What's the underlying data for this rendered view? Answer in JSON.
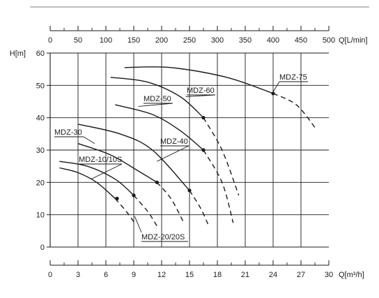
{
  "chart_data": {
    "type": "line",
    "title": "",
    "ylabel": "H[m]",
    "xlabel_top": "Q[L/min]",
    "xlabel_bottom": "Q[m³/h]",
    "x_top_ticks": [
      "0",
      "50",
      "100",
      "150",
      "200",
      "250",
      "300",
      "350",
      "400",
      "450",
      "500"
    ],
    "x_bottom_ticks": [
      "0",
      "3",
      "6",
      "9",
      "12",
      "15",
      "18",
      "21",
      "24",
      "27",
      "30"
    ],
    "y_ticks": [
      "0",
      "10",
      "20",
      "30",
      "40",
      "50",
      "60"
    ],
    "xlim": [
      0,
      30
    ],
    "ylim": [
      0,
      60
    ],
    "grid": true,
    "series": [
      {
        "name": "MDZ-10/10S",
        "solid": [
          [
            1,
            24.5
          ],
          [
            3,
            23.0
          ],
          [
            5,
            20.0
          ],
          [
            7,
            15.0
          ]
        ],
        "dashed": [
          [
            7,
            15.0
          ],
          [
            8.2,
            11.0
          ],
          [
            9.2,
            7.0
          ]
        ],
        "duty_point": [
          7.2,
          15.0
        ],
        "label_target": [
          4.4,
          21.0
        ]
      },
      {
        "name": "MDZ-20/20S",
        "solid": [
          [
            1,
            26.5
          ],
          [
            4,
            25.0
          ],
          [
            7,
            21.0
          ],
          [
            9,
            16.0
          ]
        ],
        "dashed": [
          [
            9,
            16.0
          ],
          [
            10.5,
            11.0
          ],
          [
            11.5,
            6.5
          ]
        ],
        "duty_point": [
          9.0,
          16.0
        ],
        "label_target": [
          9.1,
          9.5
        ]
      },
      {
        "name": "MDZ-30",
        "solid": [
          [
            3,
            32.0
          ],
          [
            6.5,
            28.5
          ],
          [
            9.5,
            23.5
          ],
          [
            11.5,
            20.0
          ]
        ],
        "dashed": [
          [
            11.5,
            20.0
          ],
          [
            13,
            15.0
          ],
          [
            14.3,
            8.0
          ]
        ],
        "duty_point": [
          11.5,
          20.0
        ],
        "label_target": [
          4.8,
          32.0
        ]
      },
      {
        "name": "MDZ-40",
        "solid": [
          [
            3,
            38.0
          ],
          [
            7.5,
            35.0
          ],
          [
            11,
            30.0
          ],
          [
            15,
            17.5
          ]
        ],
        "dashed": [
          [
            15,
            17.5
          ],
          [
            16.2,
            12.0
          ],
          [
            17,
            7.0
          ]
        ],
        "duty_point": [
          15.0,
          17.5
        ],
        "label_target": [
          11.5,
          26.5
        ]
      },
      {
        "name": "MDZ-50",
        "solid": [
          [
            7,
            44.0
          ],
          [
            11,
            41.0
          ],
          [
            14,
            36.0
          ],
          [
            16.5,
            30.0
          ]
        ],
        "dashed": [
          [
            16.5,
            30.0
          ],
          [
            18.5,
            20.0
          ],
          [
            19.7,
            7.5
          ]
        ],
        "duty_point": [
          16.5,
          30.0
        ],
        "label_target": [
          9.5,
          43.5
        ]
      },
      {
        "name": "MDZ-60",
        "solid": [
          [
            6.5,
            52.5
          ],
          [
            10.5,
            51.0
          ],
          [
            14,
            46.5
          ],
          [
            16.5,
            40.0
          ]
        ],
        "dashed": [
          [
            16.5,
            40.0
          ],
          [
            18.5,
            30.0
          ],
          [
            20.3,
            16.0
          ]
        ],
        "duty_point": [
          16.5,
          40.0
        ],
        "label_target": [
          14.6,
          46.5
        ]
      },
      {
        "name": "MDZ-75",
        "solid": [
          [
            8,
            55.5
          ],
          [
            13,
            55.5
          ],
          [
            19,
            52.5
          ],
          [
            24,
            47.5
          ]
        ],
        "dashed": [
          [
            24,
            47.5
          ],
          [
            26.5,
            44.0
          ],
          [
            28.5,
            37.0
          ]
        ],
        "duty_point": [
          24.0,
          47.5
        ],
        "label_target": [
          24.0,
          48.0
        ]
      }
    ]
  }
}
